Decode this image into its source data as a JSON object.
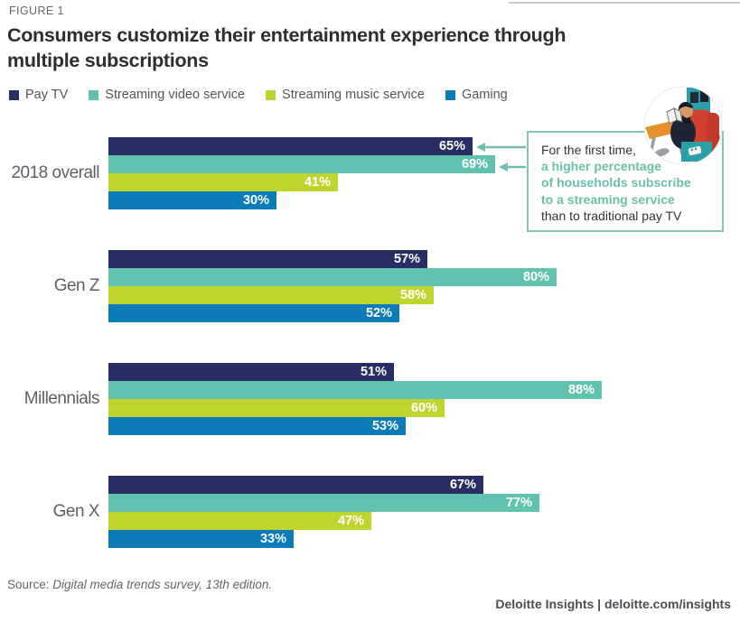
{
  "figure_label": "FIGURE 1",
  "title_lines": [
    "Consumers customize their entertainment experience through",
    "multiple subscriptions"
  ],
  "legend": [
    {
      "label": "Pay TV",
      "color": "#272e63"
    },
    {
      "label": "Streaming video service",
      "color": "#62c2b0"
    },
    {
      "label": "Streaming music service",
      "color": "#c0d42f"
    },
    {
      "label": "Gaming",
      "color": "#0b7cb8"
    }
  ],
  "chart_data": {
    "type": "bar",
    "orientation": "horizontal",
    "title": "Consumers customize their entertainment experience through multiple subscriptions",
    "categories": [
      "2018 overall",
      "Gen Z",
      "Millennials",
      "Gen X"
    ],
    "series": [
      {
        "name": "Pay TV",
        "color": "#272e63",
        "values": [
          65,
          57,
          51,
          67
        ]
      },
      {
        "name": "Streaming video service",
        "color": "#62c2b0",
        "values": [
          69,
          80,
          88,
          77
        ]
      },
      {
        "name": "Streaming music service",
        "color": "#c0d42f",
        "values": [
          41,
          58,
          60,
          47
        ]
      },
      {
        "name": "Gaming",
        "color": "#0b7cb8",
        "values": [
          30,
          52,
          53,
          33
        ]
      }
    ],
    "value_suffix": "%",
    "xlim": [
      0,
      100
    ],
    "grid": false,
    "legend_position": "top"
  },
  "annotation": {
    "line1": "For the first time,",
    "highlight_lines": [
      "a higher percentage",
      "of households subscribe",
      "to a streaming service"
    ],
    "line5": "than to traditional pay TV",
    "border_color": "#82c7b4",
    "highlight_color": "#6abfa9",
    "arrow_color": "#74bdae",
    "arrow_targets": [
      "65% Pay TV bar",
      "69% Streaming video bar"
    ]
  },
  "source": {
    "prefix": "Source: ",
    "text": "Digital media trends survey, 13th edition."
  },
  "footer_brand": "Deloitte Insights | deloitte.com/insights"
}
